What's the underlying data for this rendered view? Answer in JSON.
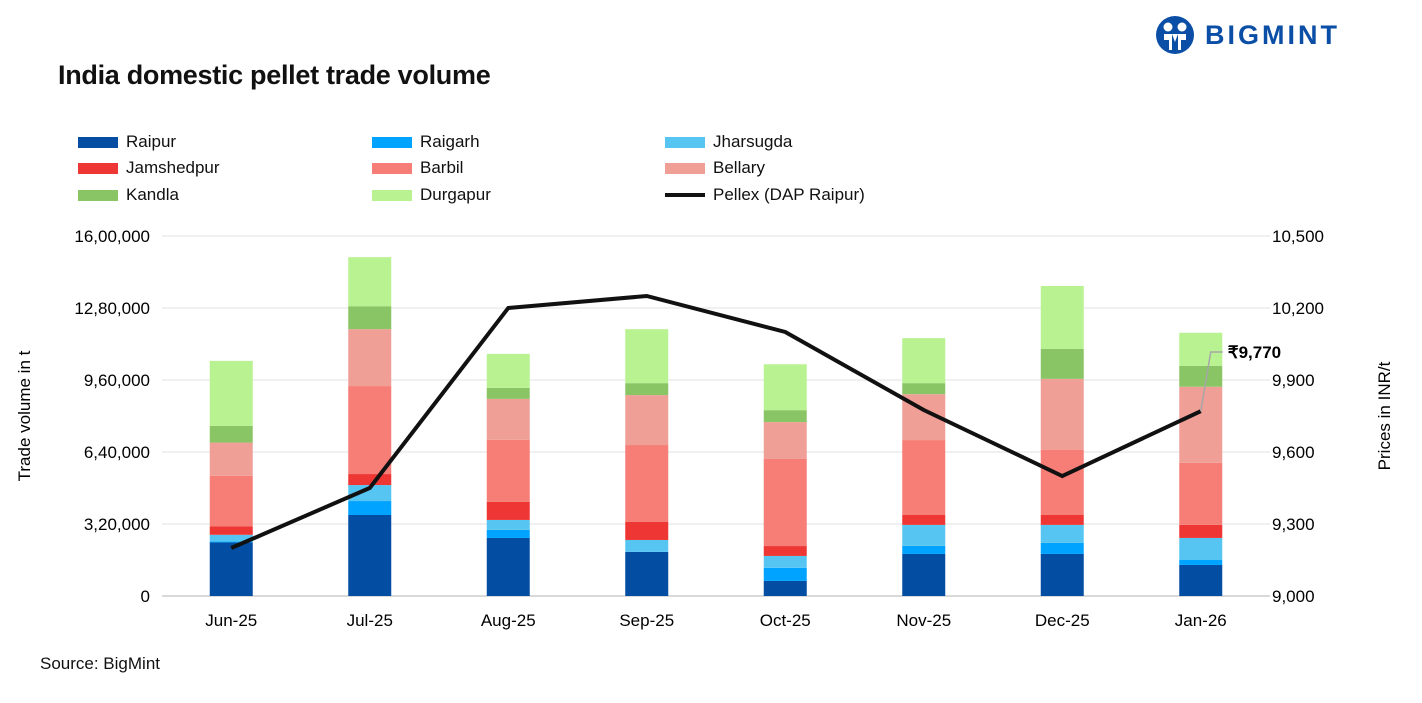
{
  "brand": {
    "logo_text": "BIGMINT",
    "color": "#0a4ea6"
  },
  "source": "Source: BigMint",
  "chart_data": {
    "type": "bar",
    "stacked": true,
    "title": "India domestic pellet trade volume",
    "ylabel": "Trade volume in t",
    "y2label": "Prices in INR/t",
    "ylim": [
      0,
      1600000
    ],
    "y2lim": [
      9000,
      10500
    ],
    "yticks": [
      "0",
      "3,20,000",
      "6,40,000",
      "9,60,000",
      "12,80,000",
      "16,00,000"
    ],
    "y2ticks": [
      "9,000",
      "9,300",
      "9,600",
      "9,900",
      "10,200",
      "10,500"
    ],
    "grid": true,
    "legend_placement": "top",
    "categories": [
      "Jun-25",
      "Jul-25",
      "Aug-25",
      "Sep-25",
      "Oct-25",
      "Nov-25",
      "Dec-25",
      "Jan-26"
    ],
    "series": [
      {
        "name": "Raipur",
        "color": "#034ea2",
        "values": [
          238000,
          360000,
          258000,
          196000,
          67000,
          187000,
          187000,
          138000
        ]
      },
      {
        "name": "Raigarh",
        "color": "#00a3ff",
        "values": [
          4000,
          62000,
          36000,
          0,
          58000,
          36000,
          49000,
          22000
        ]
      },
      {
        "name": "Jharsugda",
        "color": "#56c5f2",
        "values": [
          30000,
          71000,
          44000,
          53000,
          53000,
          93000,
          80000,
          98000
        ]
      },
      {
        "name": "Jamshedpur",
        "color": "#ee3734",
        "values": [
          37000,
          49000,
          80000,
          80000,
          44000,
          44000,
          44000,
          58000
        ]
      },
      {
        "name": "Barbil",
        "color": "#f67e76",
        "values": [
          225000,
          391000,
          276000,
          342000,
          387000,
          333000,
          289000,
          276000
        ]
      },
      {
        "name": "Bellary",
        "color": "#f09f97",
        "values": [
          148000,
          253000,
          182000,
          222000,
          164000,
          204000,
          316000,
          338000
        ]
      },
      {
        "name": "Kandla",
        "color": "#8ac565",
        "values": [
          74000,
          102000,
          49000,
          53000,
          53000,
          49000,
          133000,
          93000
        ]
      },
      {
        "name": "Durgapur",
        "color": "#b9f291",
        "values": [
          289000,
          218000,
          151000,
          240000,
          204000,
          200000,
          280000,
          147000
        ]
      }
    ],
    "line": {
      "name": "Pellex (DAP Raipur)",
      "color": "#111111",
      "axis": "right",
      "values": [
        9200,
        9450,
        10200,
        10250,
        10100,
        9775,
        9500,
        9770
      ]
    },
    "annotation": {
      "text": "₹9,770",
      "category": "Jan-26"
    }
  }
}
